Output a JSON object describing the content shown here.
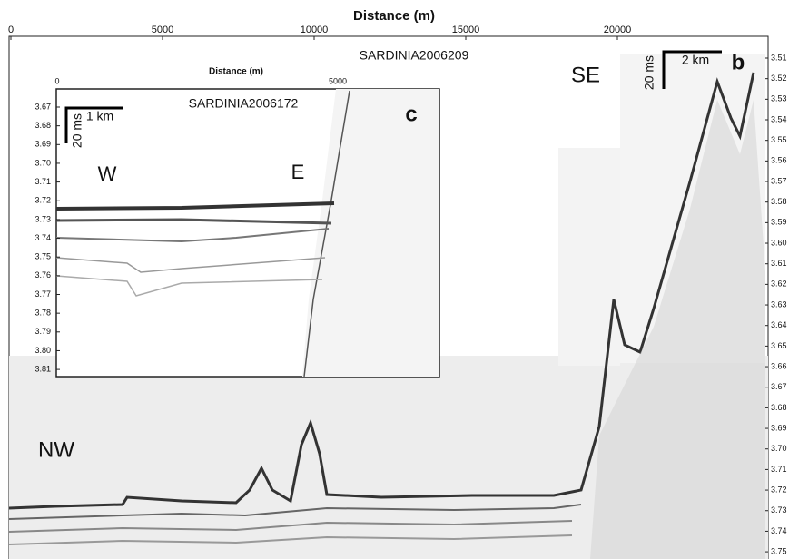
{
  "main": {
    "x_label": "Distance (m)",
    "x_ticks": [
      "0",
      "5000",
      "10000",
      "15000",
      "20000"
    ],
    "y_ticks": [
      "3.51",
      "3.52",
      "3.53",
      "3.54",
      "3.55",
      "3.56",
      "3.57",
      "3.58",
      "3.59",
      "3.60",
      "3.61",
      "3.62",
      "3.63",
      "3.64",
      "3.65",
      "3.66",
      "3.67",
      "3.68",
      "3.69",
      "3.70",
      "3.71",
      "3.72",
      "3.73",
      "3.74",
      "3.75"
    ],
    "profile": "SARDINIA2006209",
    "left_label": "NW",
    "right_label": "SE",
    "scale_h": "2 km",
    "scale_v": "20 ms",
    "panel": "b"
  },
  "inset": {
    "x_label": "Distance (m)",
    "x_ticks": [
      "0",
      "5000"
    ],
    "y_ticks": [
      "3.67",
      "3.68",
      "3.69",
      "3.70",
      "3.71",
      "3.72",
      "3.73",
      "3.74",
      "3.75",
      "3.76",
      "3.77",
      "3.78",
      "3.79",
      "3.80",
      "3.81"
    ],
    "profile": "SARDINIA2006172",
    "left_label": "W",
    "right_label": "E",
    "scale_h": "1 km",
    "scale_v": "20 ms",
    "panel": "c"
  }
}
